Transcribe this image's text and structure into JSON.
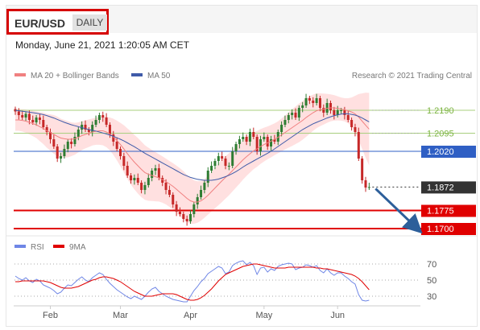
{
  "header": {
    "symbol": "EUR/USD",
    "period": "DAILY",
    "timestamp": "Monday, June 21, 2021 1:20:05 AM CET"
  },
  "colors": {
    "bull": "#2e7d32",
    "bear": "#c62828",
    "bollinger_fill": "#ffd6d6",
    "ma20": "#f08080",
    "ma50": "#3f5ba9",
    "resistance": "#a8cf7e",
    "pivot": "#2f5fc4",
    "support": "#e00000",
    "current": "#333333",
    "rsi": "#6f86e6",
    "rsi_ma": "#e00000",
    "arrow": "#2d5f9a"
  },
  "chart_data": [
    {
      "type": "candlestick",
      "title": "",
      "legend": [
        {
          "label": "MA 20 + Bollinger Bands",
          "color": "#f08080"
        },
        {
          "label": "MA 50",
          "color": "#3f5ba9"
        }
      ],
      "credit": "Research © 2021 Trading Central",
      "ylim": [
        1.168,
        1.228
      ],
      "x_tick_labels": [
        "Feb",
        "Mar",
        "Apr",
        "May",
        "Jun"
      ],
      "x_tick_index": [
        10,
        30,
        50,
        71,
        92
      ],
      "levels": [
        {
          "value": 1.219,
          "label": "1.2190",
          "kind": "resistance"
        },
        {
          "value": 1.2095,
          "label": "1.2095",
          "kind": "resistance"
        },
        {
          "value": 1.202,
          "label": "1.2020",
          "kind": "pivot"
        },
        {
          "value": 1.1872,
          "label": "1.1872",
          "kind": "current"
        },
        {
          "value": 1.1775,
          "label": "1.1775",
          "kind": "support"
        },
        {
          "value": 1.17,
          "label": "1.1700",
          "kind": "support"
        }
      ],
      "close": [
        1.2185,
        1.217,
        1.216,
        1.2175,
        1.215,
        1.214,
        1.216,
        1.215,
        1.212,
        1.21,
        1.207,
        1.204,
        1.199,
        1.2,
        1.203,
        1.206,
        1.205,
        1.208,
        1.211,
        1.213,
        1.211,
        1.21,
        1.213,
        1.215,
        1.217,
        1.216,
        1.213,
        1.209,
        1.206,
        1.203,
        1.2,
        1.196,
        1.192,
        1.19,
        1.191,
        1.189,
        1.186,
        1.188,
        1.191,
        1.194,
        1.195,
        1.191,
        1.189,
        1.186,
        1.184,
        1.18,
        1.177,
        1.176,
        1.174,
        1.173,
        1.176,
        1.18,
        1.183,
        1.186,
        1.189,
        1.194,
        1.196,
        1.198,
        1.2,
        1.199,
        1.196,
        1.196,
        1.202,
        1.205,
        1.207,
        1.208,
        1.206,
        1.21,
        1.208,
        1.202,
        1.207,
        1.208,
        1.204,
        1.207,
        1.206,
        1.21,
        1.213,
        1.215,
        1.217,
        1.218,
        1.216,
        1.22,
        1.221,
        1.224,
        1.223,
        1.222,
        1.224,
        1.22,
        1.218,
        1.222,
        1.219,
        1.217,
        1.219,
        1.219,
        1.217,
        1.215,
        1.212,
        1.21,
        1.199,
        1.19,
        1.187,
        1.1872
      ],
      "ma20": [
        1.215,
        1.215,
        1.2148,
        1.2145,
        1.214,
        1.2135,
        1.213,
        1.2122,
        1.2115,
        1.2105,
        1.2098,
        1.209,
        1.2082,
        1.2075,
        1.2072,
        1.207,
        1.207,
        1.2072,
        1.2078,
        1.2085,
        1.209,
        1.2095,
        1.21,
        1.2103,
        1.2105,
        1.2105,
        1.21,
        1.2092,
        1.208,
        1.2065,
        1.2048,
        1.203,
        1.201,
        1.1992,
        1.1975,
        1.196,
        1.1945,
        1.1932,
        1.1925,
        1.192,
        1.1915,
        1.191,
        1.1903,
        1.1895,
        1.1885,
        1.1875,
        1.1863,
        1.185,
        1.1838,
        1.1825,
        1.1815,
        1.181,
        1.181,
        1.1815,
        1.1825,
        1.1838,
        1.1853,
        1.1868,
        1.1883,
        1.1898,
        1.1912,
        1.1925,
        1.194,
        1.1955,
        1.197,
        1.1985,
        1.1998,
        1.201,
        1.2022,
        1.203,
        1.204,
        1.2048,
        1.2055,
        1.2062,
        1.207,
        1.2078,
        1.2088,
        1.2098,
        1.2108,
        1.2118,
        1.2128,
        1.2138,
        1.2148,
        1.216,
        1.217,
        1.218,
        1.2188,
        1.2192,
        1.2195,
        1.2198,
        1.22,
        1.22,
        1.2198,
        1.2195,
        1.2192,
        1.2188,
        1.2183,
        1.2175,
        1.2162,
        1.2145,
        1.2128,
        1.2112
      ],
      "ma50": [
        1.219,
        1.2188,
        1.2186,
        1.2184,
        1.2182,
        1.218,
        1.2178,
        1.2175,
        1.2172,
        1.2168,
        1.2163,
        1.2158,
        1.2152,
        1.2146,
        1.214,
        1.2135,
        1.213,
        1.2126,
        1.2122,
        1.2118,
        1.2114,
        1.211,
        1.2107,
        1.2104,
        1.21,
        1.2096,
        1.2092,
        1.2087,
        1.2082,
        1.2076,
        1.207,
        1.2063,
        1.2055,
        1.2047,
        1.2039,
        1.203,
        1.2021,
        1.2012,
        1.2004,
        1.1996,
        1.1988,
        1.198,
        1.1972,
        1.1964,
        1.1956,
        1.1948,
        1.194,
        1.1932,
        1.1924,
        1.1918,
        1.1912,
        1.1908,
        1.1904,
        1.1902,
        1.19,
        1.19,
        1.19,
        1.1902,
        1.1905,
        1.191,
        1.1915,
        1.1921,
        1.1928,
        1.1936,
        1.1945,
        1.1955,
        1.1964,
        1.1972,
        1.198,
        1.1988,
        1.1996,
        1.2004,
        1.2012,
        1.202,
        1.203,
        1.204,
        1.205,
        1.206,
        1.207,
        1.208,
        1.209,
        1.21,
        1.211,
        1.2118,
        1.2126,
        1.2134,
        1.214,
        1.2146,
        1.2152,
        1.2158,
        1.2163,
        1.2168,
        1.2171,
        1.2174,
        1.2176,
        1.2175,
        1.2173,
        1.217,
        1.2165,
        1.2158,
        1.215,
        1.2142
      ],
      "bb_width": [
        0.0045,
        0.0045,
        0.0046,
        0.0048,
        0.005,
        0.0052,
        0.0055,
        0.006,
        0.0065,
        0.007,
        0.0075,
        0.008,
        0.0082,
        0.008,
        0.0078,
        0.0075,
        0.007,
        0.0066,
        0.0062,
        0.006,
        0.0058,
        0.0057,
        0.0056,
        0.0056,
        0.0058,
        0.006,
        0.0063,
        0.0068,
        0.0075,
        0.0082,
        0.009,
        0.0098,
        0.0105,
        0.011,
        0.0113,
        0.0115,
        0.0115,
        0.0113,
        0.011,
        0.0106,
        0.0102,
        0.0098,
        0.0096,
        0.0095,
        0.0095,
        0.0096,
        0.0098,
        0.01,
        0.01,
        0.0098,
        0.0095,
        0.009,
        0.0086,
        0.0082,
        0.008,
        0.008,
        0.0082,
        0.0084,
        0.0086,
        0.0088,
        0.0088,
        0.0087,
        0.0086,
        0.0085,
        0.0084,
        0.0082,
        0.008,
        0.0078,
        0.0076,
        0.0074,
        0.0072,
        0.007,
        0.0068,
        0.0067,
        0.0066,
        0.0066,
        0.0068,
        0.007,
        0.0073,
        0.0076,
        0.0078,
        0.008,
        0.008,
        0.008,
        0.0078,
        0.0075,
        0.0072,
        0.0068,
        0.0064,
        0.006,
        0.0056,
        0.0053,
        0.005,
        0.0048,
        0.0048,
        0.0052,
        0.006,
        0.0075,
        0.0095,
        0.0115,
        0.0135,
        0.015
      ],
      "forecast_arrow": {
        "from_value": 1.1872,
        "to_value": 1.17
      }
    },
    {
      "type": "line",
      "title": "",
      "legend": [
        {
          "label": "RSI",
          "color": "#6f86e6"
        },
        {
          "label": "9MA",
          "color": "#e00000"
        }
      ],
      "ylim": [
        22,
        80
      ],
      "y_ticks": [
        70,
        50,
        30
      ],
      "rsi": [
        55,
        52,
        50,
        53,
        49,
        47,
        51,
        49,
        44,
        42,
        40,
        37,
        33,
        35,
        40,
        44,
        43,
        47,
        51,
        54,
        50,
        48,
        53,
        56,
        59,
        57,
        51,
        46,
        42,
        38,
        35,
        32,
        29,
        27,
        30,
        28,
        26,
        30,
        35,
        39,
        41,
        36,
        33,
        30,
        28,
        26,
        25,
        24,
        23,
        23,
        30,
        37,
        42,
        48,
        52,
        58,
        61,
        64,
        67,
        65,
        58,
        60,
        68,
        71,
        73,
        74,
        69,
        72,
        68,
        57,
        65,
        66,
        60,
        64,
        62,
        67,
        69,
        70,
        71,
        70,
        63,
        65,
        66,
        69,
        68,
        66,
        68,
        62,
        59,
        64,
        59,
        56,
        59,
        59,
        55,
        52,
        48,
        45,
        32,
        25,
        24,
        25
      ],
      "ma9": [
        48,
        48,
        49,
        49,
        49,
        49,
        49,
        49,
        49,
        48,
        47,
        45,
        43,
        41,
        40,
        40,
        40,
        41,
        42,
        44,
        46,
        48,
        50,
        51,
        53,
        54,
        54,
        53,
        52,
        50,
        48,
        45,
        42,
        39,
        36,
        34,
        32,
        30,
        30,
        30,
        31,
        32,
        33,
        33,
        33,
        33,
        32,
        30,
        28,
        26,
        25,
        25,
        26,
        28,
        31,
        35,
        39,
        44,
        49,
        53,
        57,
        59,
        61,
        63,
        65,
        67,
        68,
        69,
        70,
        70,
        69,
        68,
        67,
        66,
        65,
        65,
        65,
        65,
        66,
        66,
        66,
        66,
        66,
        66,
        66,
        66,
        65,
        65,
        64,
        64,
        63,
        62,
        61,
        60,
        59,
        58,
        57,
        55,
        52,
        48,
        43,
        38
      ]
    }
  ]
}
